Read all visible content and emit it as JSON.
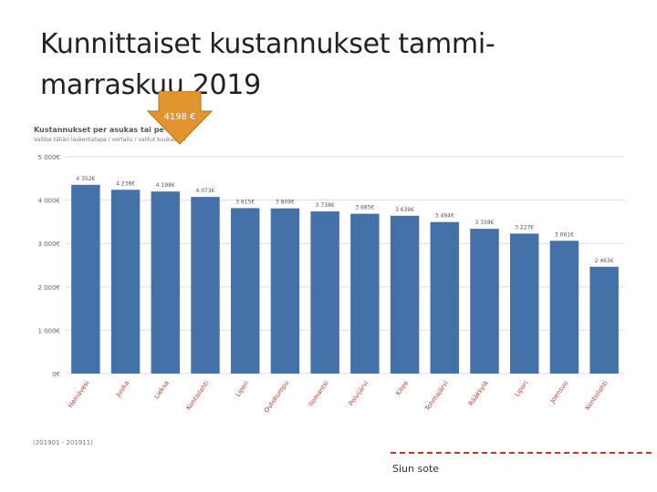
{
  "slide": {
    "title": "Kunnittaiset kustannukset tammi-marraskuu 2019",
    "footer": "Siun sote",
    "callout": "4198 €"
  },
  "colors": {
    "bar": "#4472a8",
    "grid": "#dddddd",
    "callout": "#e0952f",
    "footer_line": "#c0392b"
  },
  "chart_data": {
    "type": "bar",
    "title": "Kustannukset per asukas tai pe",
    "subtitle": "Valitse tähän laskentatapa / vertailu / valitut kuukaudet",
    "footnote": "(201901 - 201911)",
    "categories": [
      "Heinävesi",
      "Juuka",
      "Lieksa",
      "Kontiolahti",
      "Liperi",
      "Outokumpu",
      "Ilomantsi",
      "Polvijärvi",
      "Kitee",
      "Tohmajärvi",
      "Rääkkylä",
      "Lipori",
      "Joensuu",
      "Kontiolahti"
    ],
    "category_labels": [
      "Heinävesi",
      "Juuka",
      "Lieksa",
      "Kontiolahti",
      "Liperi",
      "Outokumpu",
      "Ilomantsi",
      "Polvijärvi",
      "Kitee",
      "Tohmajärvi",
      "Rääkkylä",
      "Lipori",
      "Joensuu",
      "Kontiolahti"
    ],
    "values": [
      4352,
      4238,
      4198,
      4073,
      3815,
      3809,
      3738,
      3685,
      3639,
      3494,
      3338,
      3227,
      3061,
      2463
    ],
    "value_labels": [
      "4 352€",
      "4 238€",
      "4 198€",
      "4 073€",
      "3 815€",
      "3 809€",
      "3 738€",
      "3 685€",
      "3 639€",
      "3 494€",
      "3 338€",
      "3 227€",
      "3 061€",
      "2 463€"
    ],
    "y_ticks": [
      0,
      1000,
      2000,
      3000,
      4000,
      5000
    ],
    "y_tick_labels": [
      "0€",
      "1 000€",
      "2 000€",
      "3 000€",
      "4 000€",
      "5 000€"
    ],
    "ylim": [
      0,
      5000
    ],
    "grid": true,
    "legend": "none"
  }
}
